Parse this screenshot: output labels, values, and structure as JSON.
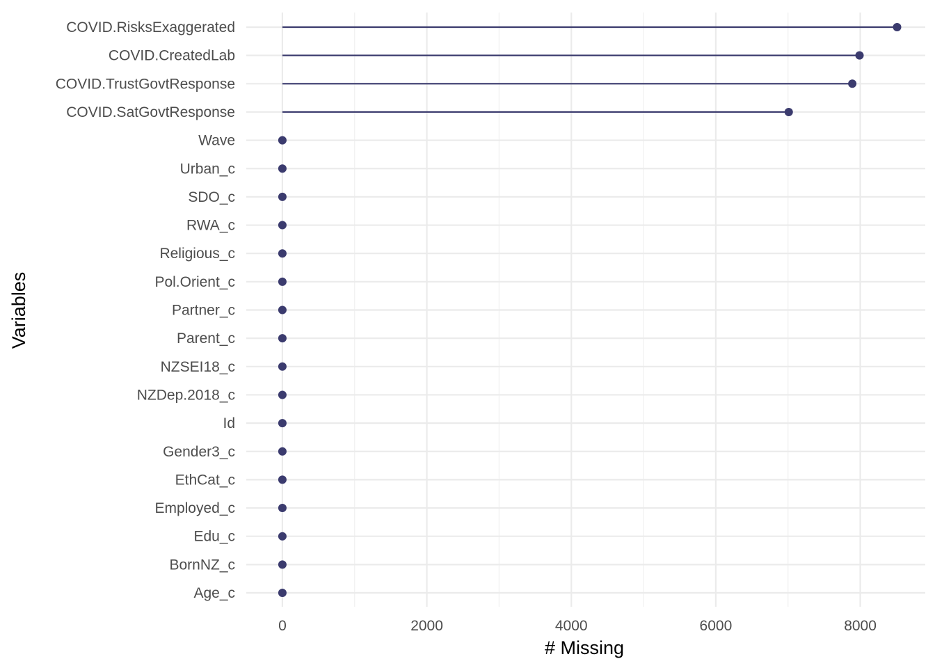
{
  "chart_data": {
    "type": "lollipop",
    "xlabel": "# Missing",
    "ylabel": "Variables",
    "xlim": [
      -500,
      8900
    ],
    "x_ticks": [
      "0",
      "2000",
      "4000",
      "6000",
      "8000"
    ],
    "x_tick_values": [
      0,
      2000,
      4000,
      6000,
      8000
    ],
    "grid": true,
    "point_color": "#3b3b6e",
    "categories": [
      "COVID.RisksExaggerated",
      "COVID.CreatedLab",
      "COVID.TrustGovtResponse",
      "COVID.SatGovtResponse",
      "Wave",
      "Urban_c",
      "SDO_c",
      "RWA_c",
      "Religious_c",
      "Pol.Orient_c",
      "Partner_c",
      "Parent_c",
      "NZSEI18_c",
      "NZDep.2018_c",
      "Id",
      "Gender3_c",
      "EthCat_c",
      "Employed_c",
      "Edu_c",
      "BornNZ_c",
      "Age_c"
    ],
    "values": [
      8510,
      7990,
      7890,
      7010,
      0,
      0,
      0,
      0,
      0,
      0,
      0,
      0,
      0,
      0,
      0,
      0,
      0,
      0,
      0,
      0,
      0
    ]
  }
}
